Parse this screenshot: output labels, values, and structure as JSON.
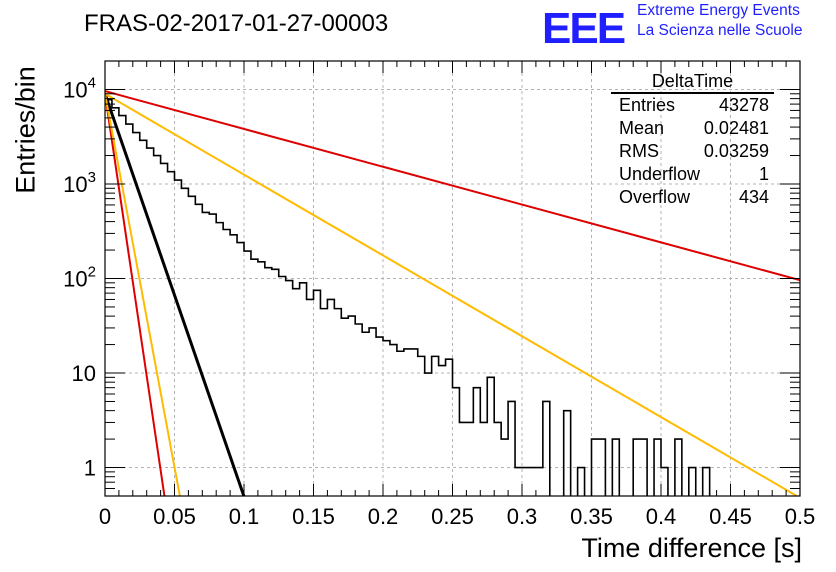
{
  "title": "FRAS-02-2017-01-27-00003",
  "logo": {
    "mark": "EEE",
    "line1": "Extreme Energy Events",
    "line2": "La Scienza nelle Scuole",
    "color": "#1f1fff"
  },
  "stats": {
    "name": "DeltaTime",
    "rows": [
      {
        "label": "Entries",
        "value": "43278"
      },
      {
        "label": "Mean",
        "value": "0.02481"
      },
      {
        "label": "RMS",
        "value": "0.03259"
      },
      {
        "label": "Underflow",
        "value": "1"
      },
      {
        "label": "Overflow",
        "value": "434"
      }
    ]
  },
  "chart_data": {
    "type": "line",
    "xlabel": "Time difference [s]",
    "ylabel": "Entries/bin",
    "xlim": [
      0,
      0.5
    ],
    "ylim": [
      0.5,
      20000
    ],
    "yscale": "log",
    "grid": true,
    "x_ticks": [
      "0",
      "0.05",
      "0.1",
      "0.15",
      "0.2",
      "0.25",
      "0.3",
      "0.35",
      "0.4",
      "0.45",
      "0.5"
    ],
    "y_ticks": [
      {
        "value": 1,
        "label": "1"
      },
      {
        "value": 10,
        "label": "10"
      },
      {
        "value": 100,
        "label": "10",
        "exp": "2"
      },
      {
        "value": 1000,
        "label": "10",
        "exp": "3"
      },
      {
        "value": 10000,
        "label": "10",
        "exp": "4"
      }
    ],
    "histogram": {
      "color": "#000000",
      "bin_width": 0.005,
      "counts": [
        7800,
        6400,
        5300,
        4300,
        3500,
        2900,
        2400,
        2000,
        1650,
        1350,
        1100,
        900,
        740,
        610,
        500,
        480,
        390,
        330,
        290,
        240,
        195,
        160,
        150,
        130,
        125,
        105,
        95,
        78,
        90,
        60,
        75,
        48,
        60,
        48,
        38,
        40,
        33,
        27,
        30,
        24,
        22,
        20,
        17,
        18,
        18,
        15,
        10,
        15,
        12,
        14,
        7,
        3,
        3,
        7,
        3,
        9,
        3,
        2,
        5,
        1,
        1,
        1,
        1,
        5,
        0,
        0,
        4,
        0,
        1,
        0,
        2,
        2,
        0,
        2,
        0,
        0,
        2,
        2,
        0,
        2,
        1,
        0,
        2,
        0,
        1,
        0,
        1,
        0,
        0,
        0,
        0,
        0,
        0,
        0,
        0,
        0,
        0,
        0,
        0,
        0
      ]
    },
    "series": [
      {
        "color": "#000000",
        "y0": 9000,
        "slope_per_unit_x": -42.6
      },
      {
        "color": "#dd0000",
        "y0": 9600,
        "slope_per_unit_x": -4.0
      },
      {
        "color": "#ffbb00",
        "y0": 9000,
        "slope_per_unit_x": -8.55
      },
      {
        "color": "#dd0000",
        "y0": 9000,
        "slope_per_unit_x": -99.5
      },
      {
        "color": "#ffbb00",
        "y0": 9000,
        "slope_per_unit_x": -79.0
      }
    ]
  }
}
